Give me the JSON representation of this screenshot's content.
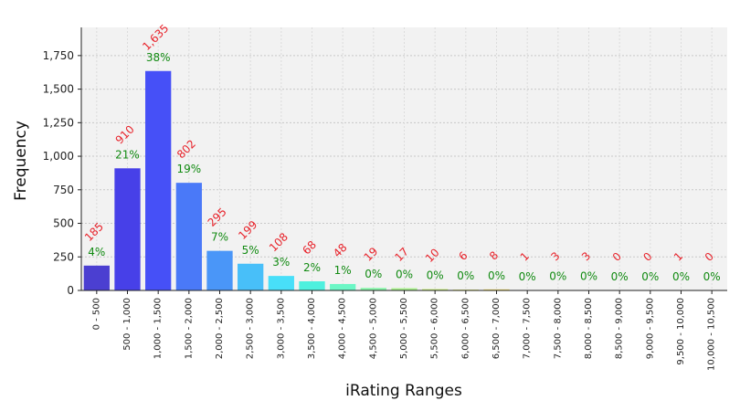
{
  "chart_data": {
    "type": "bar",
    "title": "",
    "xlabel": "iRating Ranges",
    "ylabel": "Frequency",
    "ylim": [
      0,
      1960
    ],
    "yticks": [
      0,
      250,
      500,
      750,
      1000,
      1250,
      1500,
      1750
    ],
    "ytick_labels": [
      "0",
      "250",
      "500",
      "750",
      "1,000",
      "1,250",
      "1,500",
      "1,750"
    ],
    "grid": true,
    "categories": [
      "0 - 500",
      "500 - 1,000",
      "1,000 - 1,500",
      "1,500 - 2,000",
      "2,000 - 2,500",
      "2,500 - 3,000",
      "3,000 - 3,500",
      "3,500 - 4,000",
      "4,000 - 4,500",
      "4,500 - 5,000",
      "5,000 - 5,500",
      "5,500 - 6,000",
      "6,000 - 6,500",
      "6,500 - 7,000",
      "7,000 - 7,500",
      "7,500 - 8,000",
      "8,000 - 8,500",
      "8,500 - 9,000",
      "9,000 - 9,500",
      "9,500 - 10,000",
      "10,000 - 10,500"
    ],
    "values": [
      185,
      910,
      1635,
      802,
      295,
      199,
      108,
      68,
      48,
      19,
      17,
      10,
      6,
      8,
      1,
      3,
      3,
      0,
      0,
      1,
      0
    ],
    "count_labels": [
      "185",
      "910",
      "1,635",
      "802",
      "295",
      "199",
      "108",
      "68",
      "48",
      "19",
      "17",
      "10",
      "6",
      "8",
      "1",
      "3",
      "3",
      "0",
      "0",
      "1",
      "0"
    ],
    "percent_labels": [
      "4%",
      "21%",
      "38%",
      "19%",
      "7%",
      "5%",
      "3%",
      "2%",
      "1%",
      "0%",
      "0%",
      "0%",
      "0%",
      "0%",
      "0%",
      "0%",
      "0%",
      "0%",
      "0%",
      "0%",
      "0%"
    ],
    "bar_colors": [
      "#4b3fd1",
      "#4740e8",
      "#4650f7",
      "#4a79f8",
      "#4a96f8",
      "#48bff9",
      "#48dff9",
      "#4ef0de",
      "#6cf7c6",
      "#89f6ab",
      "#a9f38d",
      "#c6f076",
      "#e2ec67",
      "#f4df5d",
      "#f9c853",
      "#f8ae4a",
      "#f59243",
      "#f0723c",
      "#e95335",
      "#de3a2e",
      "#c92c28"
    ],
    "count_label_color": "#e8222a",
    "percent_label_color": "#118a11",
    "plot_background": "#f2f2f2"
  }
}
